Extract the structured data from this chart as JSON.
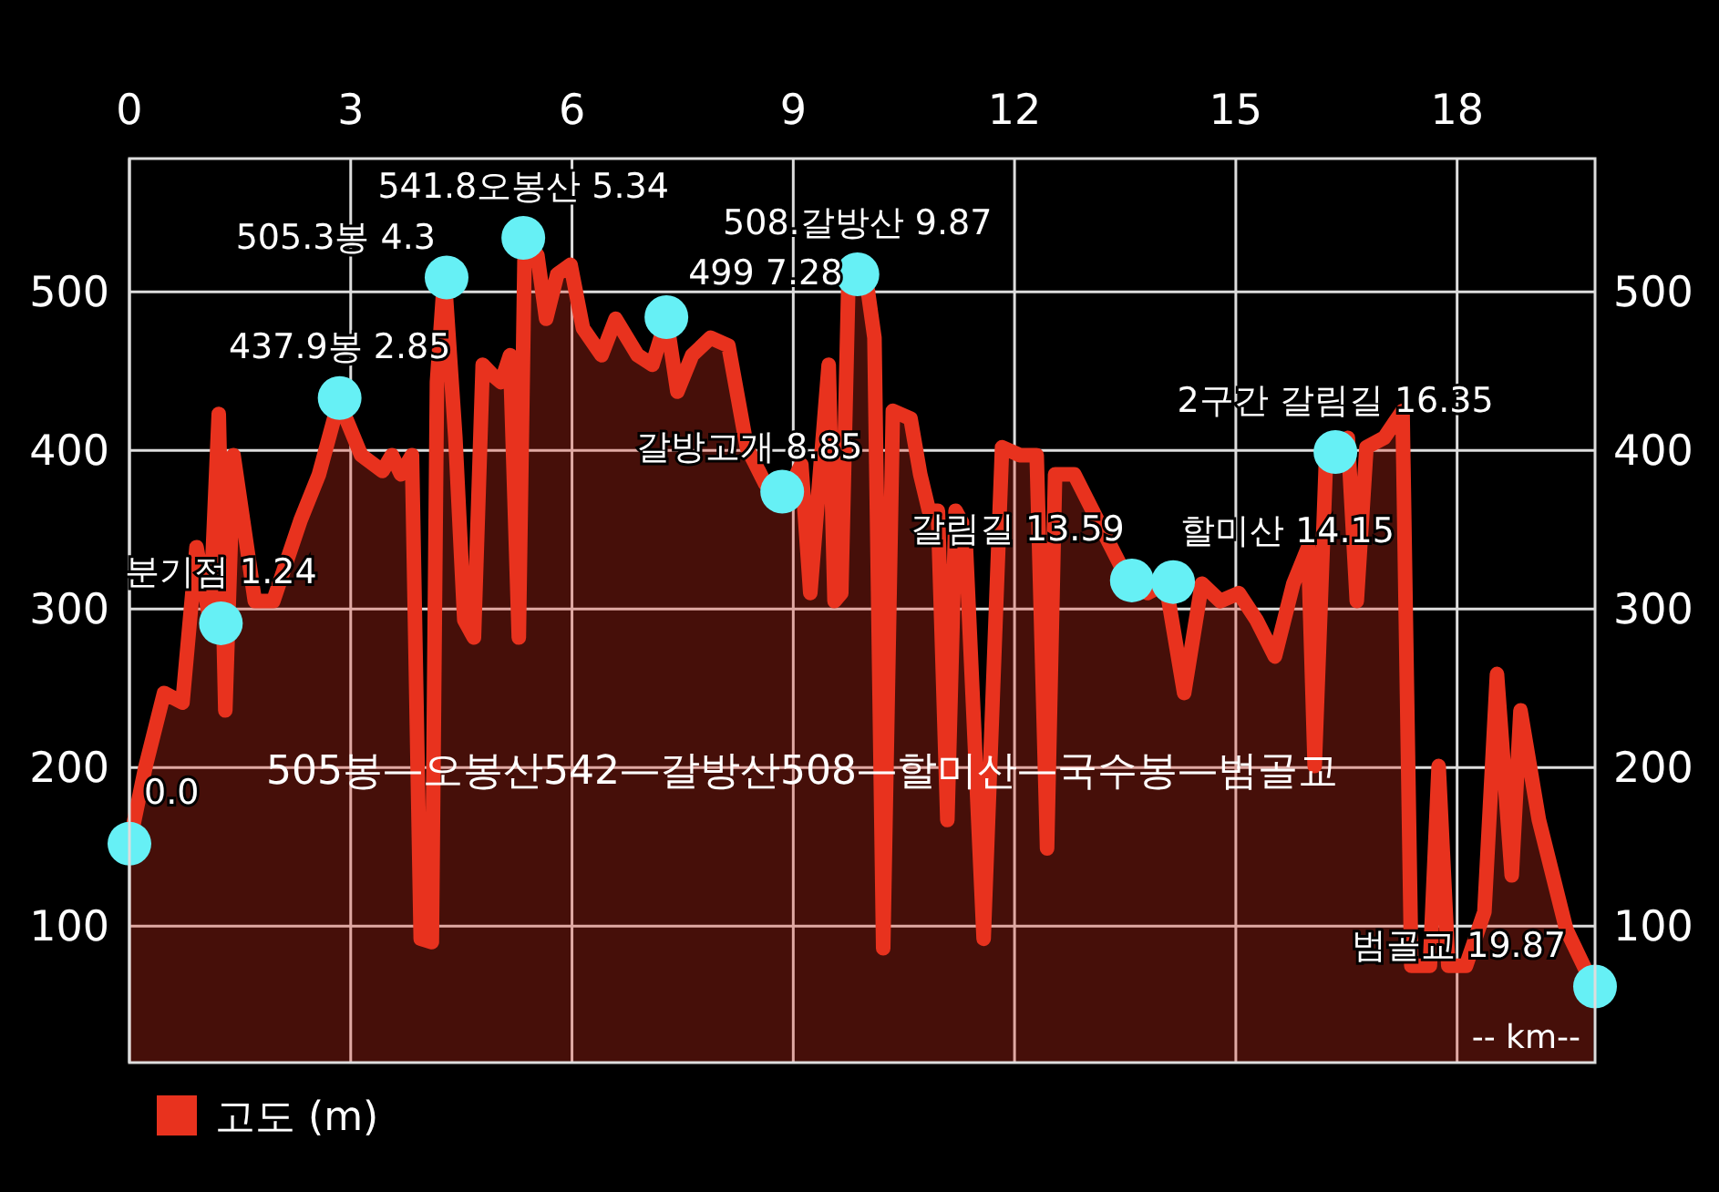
{
  "chart_data": {
    "type": "area",
    "xlim": [
      0,
      19.87
    ],
    "xticks": [
      0,
      3,
      6,
      9,
      12,
      15,
      18
    ],
    "ylim": [
      14,
      584
    ],
    "yticks": [
      100,
      200,
      300,
      400,
      500
    ],
    "y2lim": [
      14,
      584
    ],
    "y2ticks": [
      100,
      200,
      300,
      400,
      500
    ],
    "grid": true,
    "legend": "bottom left",
    "series": [
      {
        "name": "고도 (m)",
        "color": "#e8321e",
        "line_style": "solid",
        "x": [
          0,
          0.22,
          0.47,
          0.72,
          0.91,
          1.09,
          1.21,
          1.3,
          1.41,
          1.7,
          1.95,
          2.32,
          2.57,
          2.84,
          3.14,
          3.43,
          3.56,
          3.68,
          3.83,
          3.95,
          4.1,
          4.17,
          4.27,
          4.42,
          4.54,
          4.67,
          4.79,
          4.91,
          5.04,
          5.16,
          5.28,
          5.36,
          5.53,
          5.65,
          5.8,
          5.98,
          6.15,
          6.4,
          6.59,
          6.89,
          7.09,
          7.28,
          7.43,
          7.63,
          7.88,
          8.12,
          8.37,
          8.62,
          8.86,
          9.11,
          9.23,
          9.48,
          9.56,
          9.65,
          9.75,
          9.98,
          10.1,
          10.22,
          10.35,
          10.59,
          10.72,
          10.84,
          10.96,
          11.09,
          11.2,
          11.33,
          11.58,
          11.83,
          12.07,
          12.3,
          12.44,
          12.55,
          12.81,
          13.06,
          13.31,
          13.56,
          13.8,
          14.05,
          14.3,
          14.54,
          14.79,
          15.04,
          15.28,
          15.53,
          15.78,
          15.98,
          16.07,
          16.22,
          16.52,
          16.64,
          16.77,
          17.01,
          17.26,
          17.38,
          17.63,
          17.75,
          17.88,
          18.12,
          18.37,
          18.54,
          18.74,
          18.86,
          19.11,
          19.48,
          19.85
        ],
        "values": [
          152,
          201,
          247,
          241,
          339,
          293,
          423,
          236,
          397,
          305,
          305,
          356,
          385,
          431,
          397,
          387,
          397,
          385,
          397,
          92,
          90,
          443,
          511,
          408,
          293,
          282,
          454,
          448,
          443,
          460,
          282,
          534,
          523,
          483,
          511,
          517,
          477,
          460,
          483,
          460,
          454,
          483,
          437,
          460,
          471,
          466,
          402,
          379,
          368,
          391,
          310,
          454,
          305,
          310,
          511,
          511,
          471,
          86,
          425,
          420,
          385,
          362,
          362,
          167,
          362,
          351,
          92,
          402,
          397,
          397,
          149,
          385,
          385,
          362,
          339,
          316,
          310,
          316,
          247,
          316,
          305,
          310,
          293,
          270,
          316,
          339,
          201,
          391,
          408,
          305,
          402,
          408,
          425,
          75,
          75,
          201,
          75,
          75,
          109,
          259,
          132,
          236,
          167,
          98,
          62
        ]
      },
      {
        "type": "scatter",
        "color": "#66f0f5",
        "marker": "circle",
        "x": [
          0,
          1.24,
          2.85,
          4.3,
          5.34,
          7.28,
          8.85,
          9.87,
          13.59,
          14.15,
          16.35,
          19.87
        ],
        "values": [
          152,
          291,
          433,
          509,
          534,
          484,
          374,
          511,
          318,
          317,
          399,
          62
        ]
      }
    ],
    "annotations": [
      {
        "text": "0.0",
        "x": 0,
        "y": 152
      },
      {
        "text": "분기점 1.24",
        "x": 1.24,
        "y": 291
      },
      {
        "text": "437.9봉 2.85",
        "x": 2.85,
        "y": 433
      },
      {
        "text": "505.3봉 4.3",
        "x": 4.3,
        "y": 509
      },
      {
        "text": "541.8오봉산 5.34",
        "x": 5.34,
        "y": 534
      },
      {
        "text": "499 7.28",
        "x": 7.28,
        "y": 484
      },
      {
        "text": "갈방고개 8.85",
        "x": 8.85,
        "y": 374
      },
      {
        "text": "508.갈방산  9.87",
        "x": 9.87,
        "y": 511
      },
      {
        "text": "갈림길 13.59",
        "x": 13.59,
        "y": 318
      },
      {
        "text": "할미산 14.15",
        "x": 14.15,
        "y": 317
      },
      {
        "text": "2구간 갈림길 16.35",
        "x": 16.35,
        "y": 399
      },
      {
        "text": "범골교 19.87",
        "x": 19.87,
        "y": 62
      },
      "505봉—오봉산542—갈방산508—할미산—국수봉—범골교",
      "-- km--"
    ]
  }
}
